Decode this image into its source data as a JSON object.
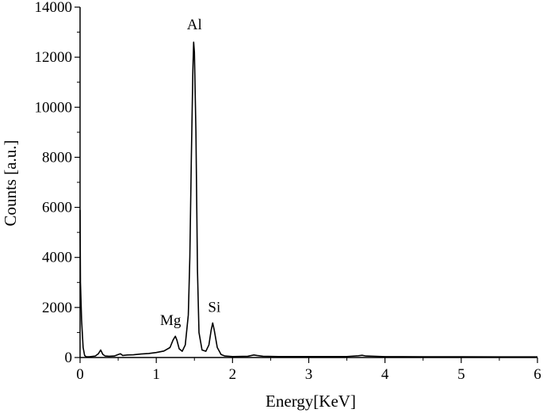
{
  "chart_data": {
    "type": "line",
    "xlabel": "Energy[KeV]",
    "ylabel": "Counts [a.u.]",
    "xlim": [
      0,
      6
    ],
    "ylim": [
      0,
      14000
    ],
    "x_ticks": [
      0,
      1,
      2,
      3,
      4,
      5,
      6
    ],
    "y_ticks": [
      0,
      2000,
      4000,
      6000,
      8000,
      10000,
      12000,
      14000
    ],
    "x_tick_labels": [
      "0",
      "1",
      "2",
      "3",
      "4",
      "5",
      "6"
    ],
    "y_tick_labels": [
      "0",
      "2000",
      "4000",
      "6000",
      "8000",
      "10000",
      "12000",
      "14000"
    ],
    "grid": false,
    "colors": {
      "line": "#000000",
      "axis": "#000000"
    },
    "series": [
      {
        "x": [
          0.0,
          0.005,
          0.02,
          0.04,
          0.06,
          0.08,
          0.12,
          0.2,
          0.24,
          0.27,
          0.3,
          0.33,
          0.38,
          0.45,
          0.5,
          0.53,
          0.56,
          0.62,
          0.7,
          0.8,
          0.9,
          1.0,
          1.1,
          1.18,
          1.22,
          1.25,
          1.27,
          1.3,
          1.34,
          1.38,
          1.42,
          1.44,
          1.46,
          1.48,
          1.49,
          1.5,
          1.52,
          1.54,
          1.56,
          1.6,
          1.65,
          1.69,
          1.72,
          1.74,
          1.76,
          1.8,
          1.85,
          1.9,
          2.0,
          2.2,
          2.28,
          2.32,
          2.4,
          2.6,
          3.0,
          3.5,
          3.65,
          3.7,
          3.75,
          4.0,
          4.5,
          5.0,
          5.5,
          6.0
        ],
        "y": [
          5900,
          3000,
          1500,
          400,
          80,
          30,
          30,
          60,
          150,
          300,
          120,
          60,
          50,
          60,
          120,
          150,
          80,
          100,
          110,
          140,
          160,
          200,
          260,
          400,
          700,
          850,
          700,
          350,
          250,
          500,
          1700,
          4000,
          8000,
          11500,
          12600,
          12200,
          9000,
          3500,
          1000,
          300,
          250,
          500,
          1100,
          1380,
          1100,
          400,
          120,
          60,
          40,
          50,
          100,
          80,
          50,
          40,
          40,
          40,
          70,
          90,
          60,
          35,
          30,
          30,
          25,
          25
        ]
      }
    ],
    "annotations": [
      {
        "text": "Al",
        "x": 1.5,
        "y": 12600
      },
      {
        "text": "Mg",
        "x": 1.25,
        "y": 850
      },
      {
        "text": "Si",
        "x": 1.74,
        "y": 1380
      }
    ]
  }
}
